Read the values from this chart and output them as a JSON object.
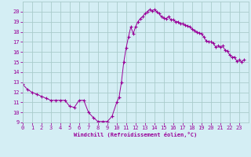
{
  "x": [
    0,
    0.5,
    1,
    1.5,
    2,
    2.5,
    3,
    3.5,
    4,
    4.5,
    5,
    5.5,
    6,
    6.5,
    7,
    7.5,
    8,
    8.5,
    9,
    9.5,
    10,
    10.25,
    10.5,
    10.75,
    11,
    11.25,
    11.5,
    11.75,
    12,
    12.25,
    12.5,
    12.75,
    13,
    13.25,
    13.5,
    13.75,
    14,
    14.25,
    14.5,
    14.75,
    15,
    15.25,
    15.5,
    15.75,
    16,
    16.25,
    16.5,
    16.75,
    17,
    17.25,
    17.5,
    17.75,
    18,
    18.25,
    18.5,
    18.75,
    19,
    19.25,
    19.5,
    19.75,
    20,
    20.25,
    20.5,
    20.75,
    21,
    21.25,
    21.5,
    21.75,
    22,
    22.25,
    22.5,
    22.75,
    23,
    23.25,
    23.5
  ],
  "y": [
    12.8,
    12.3,
    12.0,
    11.8,
    11.6,
    11.4,
    11.2,
    11.2,
    11.2,
    11.2,
    10.6,
    10.5,
    11.2,
    11.2,
    10.0,
    9.5,
    9.1,
    9.1,
    9.1,
    9.6,
    11.0,
    11.5,
    13.0,
    15.0,
    16.4,
    17.5,
    18.5,
    17.8,
    18.5,
    19.0,
    19.3,
    19.5,
    19.8,
    20.0,
    20.2,
    20.1,
    20.2,
    20.0,
    19.8,
    19.5,
    19.4,
    19.3,
    19.5,
    19.2,
    19.2,
    19.0,
    19.0,
    18.8,
    18.8,
    18.7,
    18.6,
    18.5,
    18.3,
    18.1,
    18.0,
    17.9,
    17.8,
    17.5,
    17.1,
    17.0,
    17.0,
    16.9,
    16.5,
    16.6,
    16.5,
    16.6,
    16.2,
    16.1,
    15.7,
    15.5,
    15.5,
    15.1,
    15.2,
    15.0,
    15.2
  ],
  "line_color": "#990099",
  "marker_color": "#990099",
  "bg_color": "#d4eef4",
  "grid_color": "#aacccc",
  "axis_color": "#990099",
  "tick_color": "#990099",
  "xlabel": "Windchill (Refroidissement éolien,°C)",
  "xlim": [
    0,
    24
  ],
  "ylim": [
    9,
    21
  ],
  "yticks": [
    9,
    10,
    11,
    12,
    13,
    14,
    15,
    16,
    17,
    18,
    19,
    20
  ],
  "xticks": [
    0,
    1,
    2,
    3,
    4,
    5,
    6,
    7,
    8,
    9,
    10,
    11,
    12,
    13,
    14,
    15,
    16,
    17,
    18,
    19,
    20,
    21,
    22,
    23
  ]
}
